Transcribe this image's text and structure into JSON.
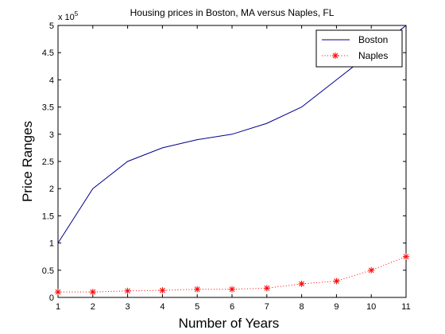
{
  "chart_data": {
    "type": "line",
    "title": "Housing prices in Boston, MA versus Naples, FL",
    "xlabel": "Number of Years",
    "ylabel": "Price Ranges",
    "y_multiplier_label": "x 10",
    "y_multiplier_exponent": "5",
    "x": [
      1,
      2,
      3,
      4,
      5,
      6,
      7,
      8,
      9,
      10,
      11
    ],
    "xlim": [
      1,
      11
    ],
    "ylim": [
      0,
      5
    ],
    "x_ticks": [
      "1",
      "2",
      "3",
      "4",
      "5",
      "6",
      "7",
      "8",
      "9",
      "10",
      "11"
    ],
    "y_ticks": [
      "0",
      "0.5",
      "1",
      "1.5",
      "2",
      "2.5",
      "3",
      "3.5",
      "4",
      "4.5",
      "5"
    ],
    "grid": false,
    "legend_position": "top-right",
    "series": [
      {
        "name": "Boston",
        "color": "#00008b",
        "style": "solid",
        "marker": "none",
        "values": [
          1.0,
          2.0,
          2.5,
          2.75,
          2.9,
          3.0,
          3.2,
          3.5,
          4.0,
          4.5,
          5.0
        ]
      },
      {
        "name": "Naples",
        "color": "#ff0000",
        "style": "dotted",
        "marker": "star",
        "values": [
          0.1,
          0.1,
          0.12,
          0.13,
          0.15,
          0.15,
          0.17,
          0.25,
          0.3,
          0.5,
          0.75
        ]
      }
    ]
  }
}
